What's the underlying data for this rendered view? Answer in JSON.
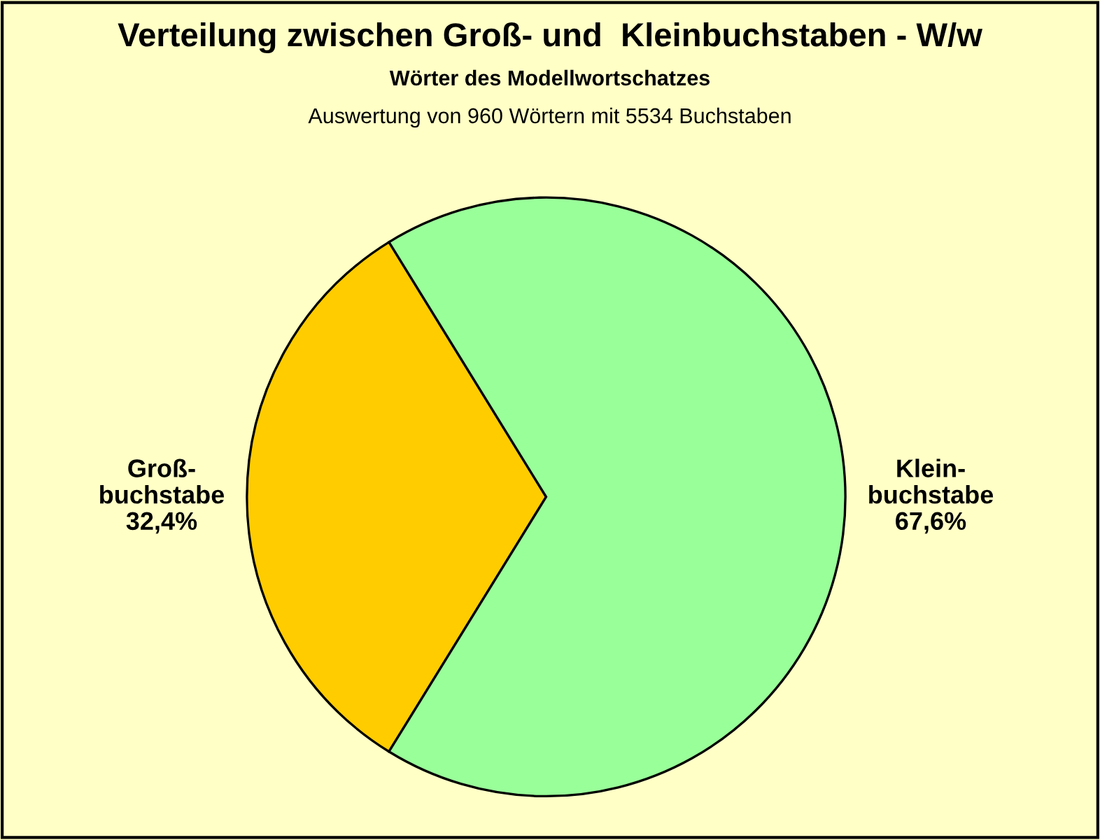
{
  "chart_data": {
    "type": "pie",
    "title": "Verteilung zwischen Groß- und  Kleinbuchstaben - W/w",
    "subtitle": "Wörter des Modellwortschatzes",
    "annotations": [
      "Auswertung von 960 Wörtern mit 5534 Buchstaben"
    ],
    "categories": [
      "Groß-\nbuchstabe",
      "Klein-\nbuchstabe"
    ],
    "values": [
      32.4,
      67.6
    ],
    "value_labels": [
      "32,4%",
      "67,6%"
    ],
    "colors": [
      "#ffcc00",
      "#99ff99"
    ],
    "legend": false
  }
}
